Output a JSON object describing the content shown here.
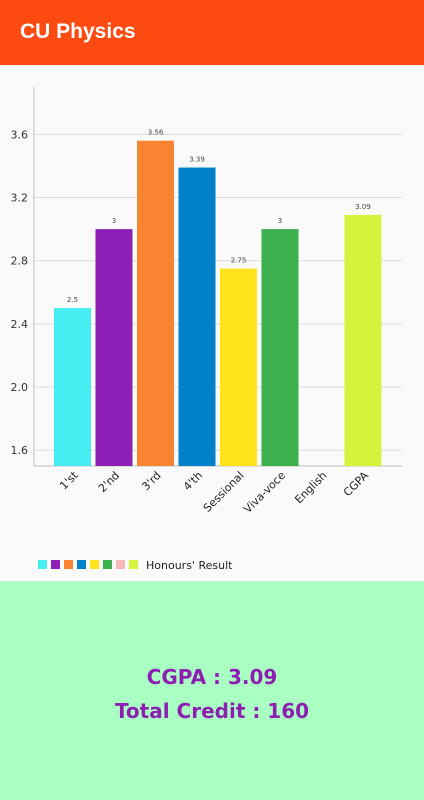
{
  "app_bar": {
    "title": "CU Physics",
    "color": "#fc4a10"
  },
  "chart_data": {
    "type": "bar",
    "categories": [
      "1'st",
      "2'nd",
      "3'rd",
      "4'th",
      "Sessional",
      "Viva-voce",
      "English",
      "CGPA"
    ],
    "values": [
      2.5,
      3,
      3.56,
      3.39,
      2.75,
      3,
      null,
      3.09
    ],
    "value_labels": [
      "2.5",
      "3",
      "3.56",
      "3.39",
      "2.75",
      "3",
      "",
      "3.09"
    ],
    "colors": [
      "#46eef2",
      "#8c1fb6",
      "#f88431",
      "#0081c9",
      "#ffe41c",
      "#3cb04d",
      "#f9b9b9",
      "#d5f43c"
    ],
    "y_ticks": [
      "1.6",
      "2.0",
      "2.4",
      "2.8",
      "3.2",
      "3.6"
    ],
    "ylim": [
      1.5,
      3.9
    ],
    "legend": {
      "label": "Honours' Result",
      "position": "bottom-left"
    },
    "grid": true
  },
  "summary": {
    "cgpa": "CGPA : 3.09",
    "credit": "Total Credit : 160",
    "background": "#aaffc3",
    "text_color": "#8d1eb1"
  }
}
